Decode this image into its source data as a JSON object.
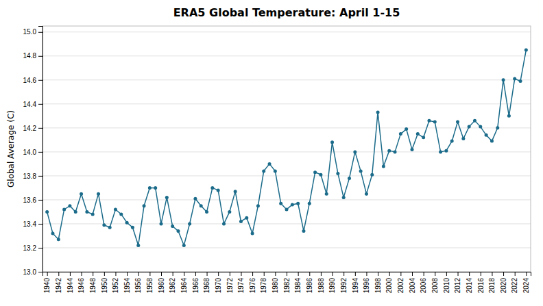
{
  "chart_data": {
    "type": "line",
    "title": "ERA5 Global Temperature: April 1-15",
    "ylabel": "Global Average (C)",
    "color": "#1b6b8a",
    "marker": "circle",
    "grid": true,
    "x": [
      1940,
      1941,
      1942,
      1943,
      1944,
      1945,
      1946,
      1947,
      1948,
      1949,
      1950,
      1951,
      1952,
      1953,
      1954,
      1955,
      1956,
      1957,
      1958,
      1959,
      1960,
      1961,
      1962,
      1963,
      1964,
      1965,
      1966,
      1967,
      1968,
      1969,
      1970,
      1971,
      1972,
      1973,
      1974,
      1975,
      1976,
      1977,
      1978,
      1979,
      1980,
      1981,
      1982,
      1983,
      1984,
      1985,
      1986,
      1987,
      1988,
      1989,
      1990,
      1991,
      1992,
      1993,
      1994,
      1995,
      1996,
      1997,
      1998,
      1999,
      2000,
      2001,
      2002,
      2003,
      2004,
      2005,
      2006,
      2007,
      2008,
      2009,
      2010,
      2011,
      2012,
      2013,
      2014,
      2015,
      2016,
      2017,
      2018,
      2019,
      2020,
      2021,
      2022,
      2023,
      2024
    ],
    "values": [
      13.5,
      13.32,
      13.27,
      13.52,
      13.55,
      13.5,
      13.65,
      13.5,
      13.48,
      13.65,
      13.39,
      13.37,
      13.52,
      13.48,
      13.41,
      13.37,
      13.22,
      13.55,
      13.7,
      13.7,
      13.4,
      13.62,
      13.38,
      13.34,
      13.22,
      13.4,
      13.61,
      13.55,
      13.5,
      13.7,
      13.68,
      13.4,
      13.5,
      13.67,
      13.42,
      13.45,
      13.32,
      13.55,
      13.84,
      13.9,
      13.84,
      13.57,
      13.52,
      13.56,
      13.57,
      13.34,
      13.57,
      13.83,
      13.81,
      13.65,
      14.08,
      13.82,
      13.62,
      13.78,
      14.0,
      13.84,
      13.65,
      13.81,
      14.33,
      13.88,
      14.01,
      14.0,
      14.15,
      14.19,
      14.02,
      14.15,
      14.12,
      14.26,
      14.25,
      14.0,
      14.01,
      14.09,
      14.25,
      14.11,
      14.21,
      14.26,
      14.21,
      14.14,
      14.09,
      14.2,
      14.6,
      14.3,
      14.61,
      14.59,
      14.85
    ],
    "xlim": [
      1939.2,
      2024.8
    ],
    "xticks": [
      1940,
      1942,
      1944,
      1946,
      1948,
      1950,
      1952,
      1954,
      1956,
      1958,
      1960,
      1962,
      1964,
      1966,
      1968,
      1970,
      1972,
      1974,
      1976,
      1978,
      1980,
      1982,
      1984,
      1986,
      1988,
      1990,
      1992,
      1994,
      1996,
      1998,
      2000,
      2002,
      2004,
      2006,
      2008,
      2010,
      2012,
      2014,
      2016,
      2018,
      2020,
      2022,
      2024
    ],
    "ylim": [
      13.0,
      15.05
    ],
    "yticks": [
      {
        "value": 13.0,
        "label": "13.0"
      },
      13.2,
      13.4,
      13.6,
      13.8,
      {
        "value": 14.0,
        "label": "14.0"
      },
      14.2,
      14.4,
      14.6,
      14.8,
      {
        "value": 15.0,
        "label": "15.0"
      }
    ]
  }
}
